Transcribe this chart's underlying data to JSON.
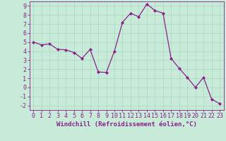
{
  "x": [
    0,
    1,
    2,
    3,
    4,
    5,
    6,
    7,
    8,
    9,
    10,
    11,
    12,
    13,
    14,
    15,
    16,
    17,
    18,
    19,
    20,
    21,
    22,
    23
  ],
  "y": [
    5.0,
    4.7,
    4.8,
    4.2,
    4.15,
    3.85,
    3.2,
    4.2,
    1.7,
    1.65,
    4.0,
    7.2,
    8.2,
    7.8,
    9.2,
    8.5,
    8.2,
    3.2,
    2.1,
    1.1,
    0.0,
    1.1,
    -1.3,
    -1.8
  ],
  "line_color": "#882288",
  "marker": "D",
  "marker_size": 2,
  "bg_color": "#c8ead8",
  "grid_color": "#a8d8c0",
  "xlabel": "Windchill (Refroidissement éolien,°C)",
  "ylim": [
    -2.5,
    9.5
  ],
  "xlim": [
    -0.5,
    23.5
  ],
  "yticks": [
    -2,
    -1,
    0,
    1,
    2,
    3,
    4,
    5,
    6,
    7,
    8,
    9
  ],
  "xticks": [
    0,
    1,
    2,
    3,
    4,
    5,
    6,
    7,
    8,
    9,
    10,
    11,
    12,
    13,
    14,
    15,
    16,
    17,
    18,
    19,
    20,
    21,
    22,
    23
  ],
  "xlabel_fontsize": 6.5,
  "tick_fontsize": 6,
  "linewidth": 0.9
}
